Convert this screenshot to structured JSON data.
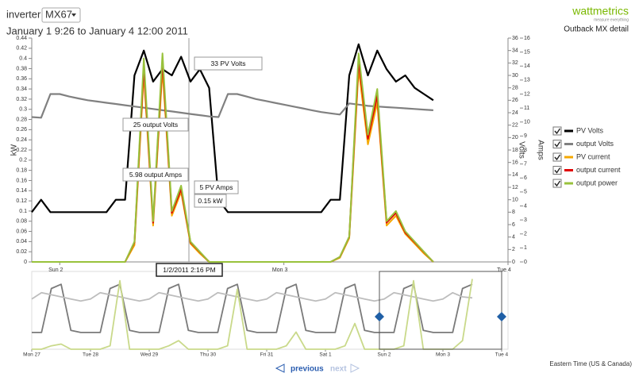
{
  "header": {
    "inverter_label": "inverter:",
    "inverter_value": "MX67",
    "range": "January 1 9:26 to January 4 12:00 2011",
    "brand": "wattmetrics",
    "tagline": "measure everything",
    "page_title": "Outback MX detail"
  },
  "chart_data": {
    "type": "line",
    "categories": [
      null,
      null,
      null,
      "Sun 2",
      null,
      null,
      null,
      null,
      null,
      null,
      null,
      null,
      null,
      null,
      null,
      null,
      null,
      null,
      null,
      null,
      null,
      null,
      null,
      null,
      null,
      null,
      null,
      "Mon 3",
      null,
      null,
      null,
      null,
      null,
      null,
      null,
      null,
      null,
      null,
      null,
      null,
      null,
      null,
      null,
      null,
      null,
      null,
      null,
      null,
      null,
      null,
      null,
      "Tue 4"
    ],
    "ylabel": "kW",
    "y2label": "Volts",
    "y3label": "Amps",
    "ylim": [
      0,
      0.44
    ],
    "yticks": [
      0,
      0.02,
      0.04,
      0.06,
      0.08,
      0.1,
      0.12,
      0.14,
      0.16,
      0.18,
      0.2,
      0.22,
      0.24,
      0.26,
      0.28,
      0.3,
      0.32,
      0.34,
      0.36,
      0.38,
      0.4,
      0.42,
      0.44
    ],
    "y2lim": [
      0,
      36
    ],
    "y2ticks": [
      0,
      2,
      4,
      6,
      8,
      10,
      12,
      14,
      16,
      18,
      20,
      22,
      24,
      26,
      28,
      30,
      32,
      34,
      36
    ],
    "y3lim": [
      0,
      16
    ],
    "y3ticks": [
      0,
      1,
      2,
      3,
      4,
      5,
      6,
      7,
      8,
      9,
      10,
      11,
      12,
      13,
      14,
      15,
      16
    ],
    "series": [
      {
        "name": "PV Volts",
        "color": "#000000",
        "axis": "y2",
        "values": [
          8,
          10,
          8,
          8,
          8,
          8,
          8,
          8,
          8,
          10,
          10,
          30,
          34,
          29,
          31,
          30,
          33,
          29,
          31,
          28,
          10,
          8,
          8,
          8,
          8,
          8,
          8,
          8,
          8,
          8,
          8,
          8,
          10,
          10,
          30,
          35,
          30,
          34,
          31,
          29,
          30,
          28,
          27,
          26,
          null,
          null,
          null,
          null,
          null,
          null,
          null,
          null
        ]
      },
      {
        "name": "output Volts",
        "color": "#808080",
        "axis": "y2",
        "values": [
          23.3,
          23.2,
          27,
          27,
          26.6,
          26.3,
          26,
          25.8,
          25.6,
          25.4,
          25.2,
          25,
          24.8,
          24.6,
          24.4,
          24.2,
          24,
          23.8,
          23.6,
          23.4,
          23.3,
          27,
          27,
          26.6,
          26.2,
          25.9,
          25.6,
          25.3,
          25,
          24.7,
          24.4,
          24.1,
          23.9,
          23.7,
          25.5,
          25.3,
          25.1,
          25,
          24.9,
          24.8,
          24.7,
          24.6,
          24.5,
          24.4,
          null,
          null,
          null,
          null,
          null,
          null,
          null,
          null
        ]
      },
      {
        "name": "PV current",
        "color": "#f5a800",
        "axis": "y3",
        "values": [
          0,
          0,
          0,
          0,
          0,
          0,
          0,
          0,
          0,
          0,
          0,
          1.2,
          13.5,
          2.6,
          13.8,
          3.3,
          5,
          1.3,
          0.6,
          0,
          0,
          0,
          0,
          0,
          0,
          0,
          0,
          0,
          0,
          0,
          0,
          0,
          0,
          0.3,
          1.7,
          13.8,
          8.4,
          11.4,
          2.6,
          3.3,
          2,
          1.3,
          0.6,
          0,
          null,
          null,
          null,
          null,
          null,
          null,
          null,
          null
        ]
      },
      {
        "name": "output current",
        "color": "#e00000",
        "axis": "y3",
        "values": [
          0,
          0,
          0,
          0,
          0,
          0,
          0,
          0,
          0,
          0,
          0,
          1.4,
          14,
          2.8,
          14.4,
          3.5,
          5.2,
          1.4,
          0.7,
          0,
          0,
          0,
          0,
          0,
          0,
          0,
          0,
          0,
          0,
          0,
          0,
          0,
          0,
          0.35,
          1.8,
          14.4,
          8.8,
          11.9,
          2.8,
          3.5,
          2.1,
          1.4,
          0.7,
          0,
          null,
          null,
          null,
          null,
          null,
          null,
          null,
          null
        ]
      },
      {
        "name": "output power",
        "color": "#99c23c",
        "axis": "y",
        "values": [
          0,
          0,
          0,
          0,
          0,
          0,
          0,
          0,
          0,
          0,
          0,
          0.04,
          0.4,
          0.08,
          0.41,
          0.1,
          0.15,
          0.04,
          0.02,
          0,
          0,
          0,
          0,
          0,
          0,
          0,
          0,
          0,
          0,
          0,
          0,
          0,
          0,
          0.01,
          0.05,
          0.41,
          0.25,
          0.34,
          0.08,
          0.1,
          0.06,
          0.04,
          0.02,
          0,
          null,
          null,
          null,
          null,
          null,
          null,
          null,
          null
        ]
      }
    ],
    "tooltips": [
      "33 PV Volts",
      "25 output Volts",
      "5.98 output Amps",
      "5 PV Amps",
      "0.15 kW",
      "1/2/2011 2:16 PM"
    ]
  },
  "navigator": {
    "type": "line",
    "categories": [
      "Mon 27",
      null,
      null,
      null,
      null,
      null,
      "Tue 28",
      null,
      null,
      null,
      null,
      null,
      "Wed 29",
      null,
      null,
      null,
      null,
      null,
      "Thu 30",
      null,
      null,
      null,
      null,
      null,
      "Fri 31",
      null,
      null,
      null,
      null,
      null,
      "Sat 1",
      null,
      null,
      null,
      null,
      null,
      "Sun 2",
      null,
      null,
      null,
      null,
      null,
      "Mon 3",
      null,
      null,
      null,
      null,
      null,
      "Tue 4"
    ],
    "ylim": [
      0,
      36
    ],
    "y2lim": [
      0,
      0.44
    ],
    "series": [
      {
        "name": "PV Volts",
        "color": "#7a7a7a",
        "values": [
          8,
          8,
          29,
          31,
          9,
          8,
          8,
          8,
          29,
          31,
          9,
          8,
          8,
          8,
          29,
          31,
          9,
          8,
          8,
          8,
          29,
          31,
          9,
          8,
          8,
          8,
          29,
          31,
          9,
          8,
          8,
          8,
          29,
          31,
          9,
          8,
          8,
          8,
          29,
          31,
          9,
          8,
          8,
          8,
          29,
          31,
          null,
          null,
          null
        ]
      },
      {
        "name": "output Volts",
        "color": "#bdbdbd",
        "values": [
          24,
          27,
          26,
          25,
          24,
          23,
          24,
          27,
          26,
          25,
          24,
          23,
          24,
          27,
          26,
          25,
          24,
          23,
          24,
          27,
          26,
          25,
          24,
          23,
          24,
          27,
          26,
          25,
          24,
          23,
          24,
          27,
          26,
          25,
          24,
          23,
          24,
          27,
          26,
          25,
          24,
          23,
          24,
          27,
          25,
          24.5,
          null,
          null,
          null
        ]
      },
      {
        "name": "output power",
        "color": "#c9d98a",
        "axis": "y2",
        "values": [
          0,
          0,
          0.02,
          0.03,
          0,
          0,
          0,
          0,
          0.02,
          0.4,
          0,
          0,
          0,
          0,
          0.02,
          0.05,
          0,
          0,
          0,
          0,
          0.02,
          0.35,
          0,
          0,
          0,
          0,
          0.02,
          0.1,
          0,
          0,
          0,
          0,
          0.02,
          0.15,
          0,
          0,
          0,
          0,
          0.02,
          0.4,
          0,
          0,
          0,
          0,
          0.05,
          0.41,
          null,
          null,
          null
        ]
      }
    ]
  },
  "footer": {
    "previous": "previous",
    "next": "next",
    "timezone": "Eastern Time (US & Canada)"
  }
}
